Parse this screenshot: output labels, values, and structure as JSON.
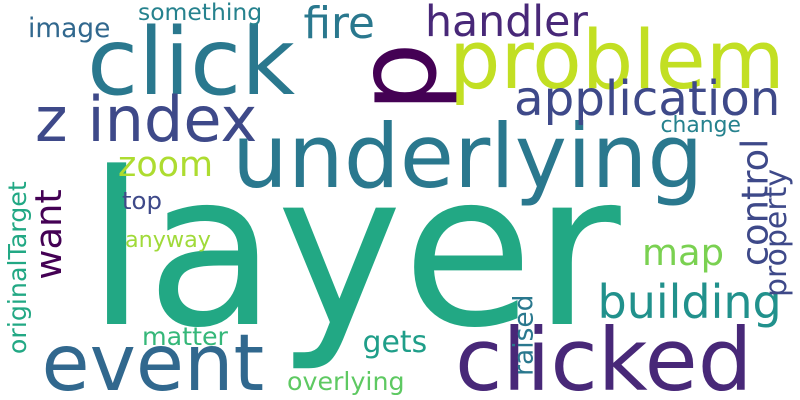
{
  "words": [
    {
      "text": "layer",
      "color": "#22a884"
    },
    {
      "text": "p",
      "color": "#440154"
    },
    {
      "text": "problem",
      "color": "#c2df23"
    },
    {
      "text": "click",
      "color": "#2a788e"
    },
    {
      "text": "underlying",
      "color": "#2a788e"
    },
    {
      "text": "clicked",
      "color": "#482878"
    },
    {
      "text": "event",
      "color": "#31688e"
    },
    {
      "text": "z index",
      "color": "#3e4989"
    },
    {
      "text": "application",
      "color": "#3e4989"
    },
    {
      "text": "handler",
      "color": "#482878"
    },
    {
      "text": "fire",
      "color": "#2a788e"
    },
    {
      "text": "zoom",
      "color": "#addc30"
    },
    {
      "text": "map",
      "color": "#7ad151"
    },
    {
      "text": "building",
      "color": "#21918c"
    },
    {
      "text": "control",
      "color": "#3e4989"
    },
    {
      "text": "property",
      "color": "#3e4989"
    },
    {
      "text": "want",
      "color": "#440154"
    },
    {
      "text": "originalTarget",
      "color": "#22a884"
    },
    {
      "text": "image",
      "color": "#31688e"
    },
    {
      "text": "something",
      "color": "#26828e"
    },
    {
      "text": "change",
      "color": "#26828e"
    },
    {
      "text": "top",
      "color": "#3e4989"
    },
    {
      "text": "anyway",
      "color": "#a0da39"
    },
    {
      "text": "raised",
      "color": "#2a788e"
    },
    {
      "text": "matter",
      "color": "#35b779"
    },
    {
      "text": "gets",
      "color": "#1f9e89"
    },
    {
      "text": "overlying",
      "color": "#5ec962"
    }
  ]
}
